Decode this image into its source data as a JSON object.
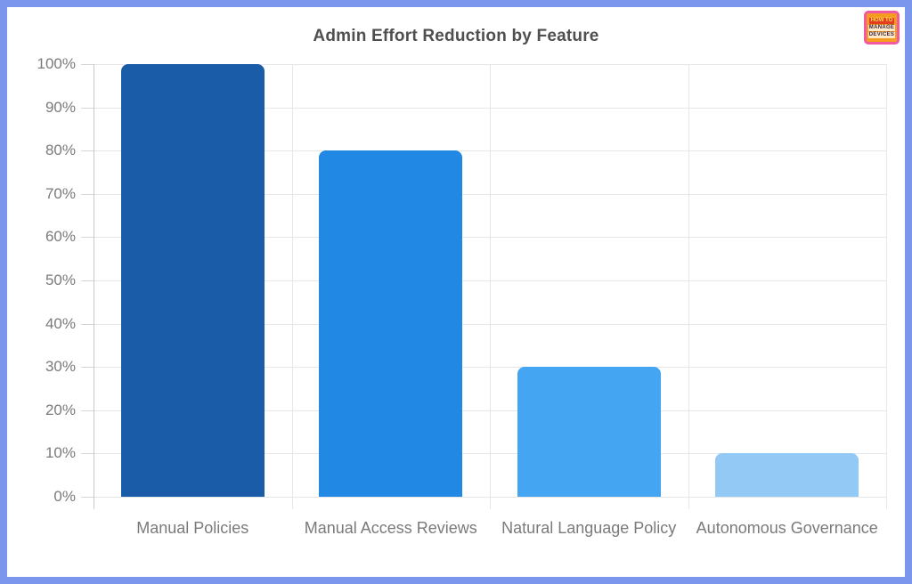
{
  "title": "Admin Effort Reduction by Feature",
  "logo": {
    "line1": "HOW TO",
    "line2": "MANAGE",
    "line3": "DEVICES"
  },
  "chart_data": {
    "type": "bar",
    "title": "Admin Effort Reduction by Feature",
    "categories": [
      "Manual Policies",
      "Manual Access Reviews",
      "Natural Language Policy",
      "Autonomous Governance"
    ],
    "values": [
      100,
      80,
      30,
      10
    ],
    "unit": "%",
    "xlabel": "",
    "ylabel": "",
    "ylim": [
      0,
      100
    ],
    "ytick_step": 10,
    "ytick_labels": [
      "0%",
      "10%",
      "20%",
      "30%",
      "40%",
      "50%",
      "60%",
      "70%",
      "80%",
      "90%",
      "100%"
    ],
    "bar_colors": [
      "#1a5ca8",
      "#2189e4",
      "#44a5f3",
      "#92c9f5"
    ],
    "grid": true,
    "legend": false
  },
  "colors": {
    "frame_border": "#7b97ed",
    "grid_line": "#e7e7e7",
    "axis_line": "#c9c9c9",
    "axis_text": "#7a7a7a",
    "title_text": "#4f4f4f"
  }
}
